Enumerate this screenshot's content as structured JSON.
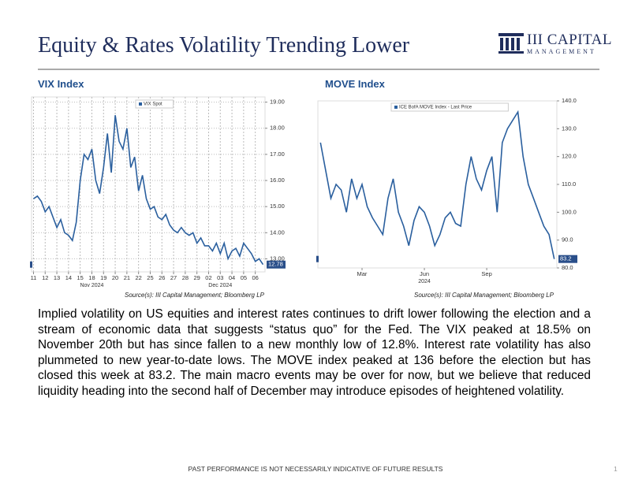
{
  "header": {
    "title": "Equity & Rates Volatility Trending Lower",
    "logo": "III CAPITAL",
    "logo_sub": "MANAGEMENT"
  },
  "chart_data": [
    {
      "type": "line",
      "title": "VIX Index",
      "source": "Source(s): III Capital Management; Bloomberg LP",
      "categories": [
        "11",
        null,
        null,
        "12",
        null,
        null,
        "13",
        null,
        null,
        "14",
        null,
        null,
        "15",
        null,
        null,
        "18",
        null,
        null,
        "19",
        null,
        null,
        "20",
        null,
        null,
        "21",
        null,
        null,
        "22",
        null,
        null,
        "25",
        null,
        null,
        "26",
        null,
        null,
        "27",
        null,
        null,
        "28",
        null,
        null,
        "29",
        null,
        null,
        "02",
        null,
        null,
        "03",
        null,
        null,
        "04",
        null,
        null,
        "05",
        null,
        null,
        "06",
        null,
        null
      ],
      "month_labels": [
        {
          "label": "Nov 2024",
          "index": 15
        },
        {
          "label": "Dec 2024",
          "index": 48
        }
      ],
      "series": [
        {
          "name": "VIX Spot",
          "color": "#2a5f9e",
          "values": [
            15.3,
            15.4,
            15.2,
            14.8,
            15.0,
            14.6,
            14.2,
            14.5,
            14.0,
            13.9,
            13.7,
            14.4,
            16.0,
            17.0,
            16.8,
            17.2,
            16.0,
            15.5,
            16.5,
            17.8,
            16.3,
            18.5,
            17.5,
            17.2,
            18.0,
            16.5,
            16.9,
            15.6,
            16.2,
            15.3,
            14.9,
            15.0,
            14.6,
            14.5,
            14.7,
            14.3,
            14.1,
            14.0,
            14.2,
            14.0,
            13.9,
            14.0,
            13.6,
            13.8,
            13.5,
            13.5,
            13.3,
            13.6,
            13.2,
            13.6,
            13.0,
            13.3,
            13.4,
            13.1,
            13.6,
            13.4,
            13.2,
            12.9,
            13.0,
            12.78
          ]
        }
      ],
      "ylim": [
        12.5,
        19.2
      ],
      "yticks": [
        {
          "value": 13,
          "label": "13.00"
        },
        {
          "value": 14,
          "label": "14.00"
        },
        {
          "value": 15,
          "label": "15.00"
        },
        {
          "value": 16,
          "label": "16.00"
        },
        {
          "value": 17,
          "label": "17.00"
        },
        {
          "value": 18,
          "label": "18.00"
        },
        {
          "value": 19,
          "label": "19.00"
        }
      ],
      "grid": true
    },
    {
      "type": "line",
      "title": "MOVE Index",
      "source": "Source(s): III Capital Management; Bloomberg LP",
      "categories": [
        null,
        null,
        null,
        null,
        null,
        null,
        null,
        null,
        "Mar",
        null,
        null,
        null,
        null,
        null,
        null,
        null,
        null,
        null,
        null,
        null,
        "Jun",
        null,
        null,
        null,
        null,
        null,
        null,
        null,
        null,
        null,
        null,
        null,
        "Sep",
        null,
        null,
        null,
        null,
        null,
        null,
        null,
        null,
        null,
        null,
        null,
        null,
        null
      ],
      "month_labels": [
        {
          "label": "2024",
          "index": 20
        }
      ],
      "series": [
        {
          "name": "ICE BofA MOVE Index - Last Price",
          "color": "#2a5f9e",
          "values": [
            125,
            115,
            105,
            110,
            108,
            100,
            112,
            105,
            110,
            102,
            98,
            95,
            92,
            105,
            112,
            100,
            95,
            88,
            97,
            102,
            100,
            95,
            88,
            92,
            98,
            100,
            96,
            95,
            110,
            120,
            112,
            108,
            115,
            120,
            100,
            125,
            130,
            133,
            136,
            120,
            110,
            105,
            100,
            95,
            92,
            83.2
          ]
        }
      ],
      "ylim": [
        80,
        140
      ],
      "yticks": [
        {
          "value": 80,
          "label": "80.0"
        },
        {
          "value": 90,
          "label": "90.0"
        },
        {
          "value": 100,
          "label": "100.0"
        },
        {
          "value": 110,
          "label": "110.0"
        },
        {
          "value": 120,
          "label": "120.0"
        },
        {
          "value": 130,
          "label": "130.0"
        },
        {
          "value": 140,
          "label": "140.0"
        }
      ],
      "grid": false
    }
  ],
  "body": "Implied volatility on US equities and interest rates continues to drift lower following the election and a stream of economic data that suggests “status quo” for the Fed. The VIX peaked at 18.5% on November 20th but has since fallen to a new monthly low of 12.8%. Interest rate volatility has also plummeted to new year-to-date lows. The MOVE index peaked at 136 before the election but has closed this week at 83.2. The main macro events may be over for now, but we believe that reduced liquidity heading into the second half of December may introduce episodes of heightened volatility.",
  "footer": "PAST PERFORMANCE IS NOT NECESSARILY INDICATIVE OF FUTURE RESULTS",
  "page_number": "1"
}
